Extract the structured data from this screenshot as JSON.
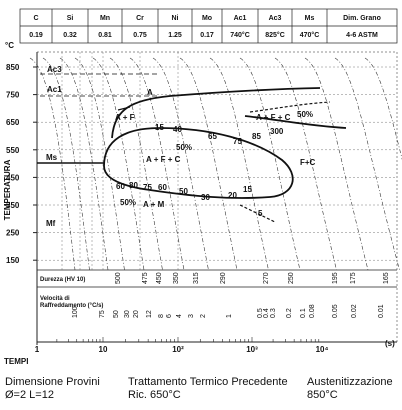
{
  "composition": {
    "headers": [
      "C",
      "Si",
      "Mn",
      "Cr",
      "Ni",
      "Mo",
      "Ac1",
      "Ac3",
      "Ms",
      "Dim. Grano"
    ],
    "values": [
      "0.19",
      "0.32",
      "0.81",
      "0.75",
      "1.25",
      "0.17",
      "740°C",
      "825°C",
      "470°C",
      "4-6 ASTM"
    ]
  },
  "y_axis": {
    "unit": "°C",
    "title": "TEMPERATURA",
    "ticks": [
      "850",
      "750",
      "650",
      "550",
      "450",
      "350",
      "250",
      "150"
    ]
  },
  "x_axis": {
    "title": "TEMPI",
    "ticks": [
      "1",
      "10",
      "10²",
      "10³",
      "10⁴"
    ],
    "unit": "(s)"
  },
  "regions": {
    "ac3": "Ac3",
    "ac1": "Ac1",
    "ms": "Ms",
    "mf": "Mf",
    "a": "A",
    "a_f": "A + F",
    "a_f_c_upper": "A + F + C",
    "pct_upper": "50%",
    "a_f_c": "A + F + C",
    "pct_mid": "50%",
    "f_c": "F+C",
    "pct_low": "50%",
    "a_m": "A + M"
  },
  "curve_labels": [
    "15",
    "40",
    "65",
    "75",
    "85",
    "300",
    "60",
    "80",
    "75",
    "60",
    "50",
    "30",
    "20",
    "15",
    "5"
  ],
  "hardness": {
    "label": "Durezza (HV 10)",
    "values": [
      "500",
      "475",
      "450",
      "350",
      "315",
      "290",
      "270",
      "250",
      "195",
      "175",
      "165"
    ]
  },
  "cooling_rate": {
    "label_1": "Velocità di",
    "label_2": "Raffreddamento (°C/s)",
    "values": [
      "100",
      "75",
      "50",
      "30",
      "20",
      "12",
      "8",
      "6",
      "4",
      "3",
      "2",
      "1",
      "0.5",
      "0.4",
      "0.3",
      "0.2",
      "0.1",
      "0.08",
      "0.05",
      "0.02",
      "0.01"
    ]
  },
  "footer": {
    "specimen_title": "Dimensione Provini",
    "specimen_value": "Ø=2  L=12",
    "treatment_title": "Trattamento Termico Precedente",
    "treatment_value": "Ric. 650°C",
    "austenite_title": "Austenitizzazione",
    "austenite_value": "850°C"
  }
}
